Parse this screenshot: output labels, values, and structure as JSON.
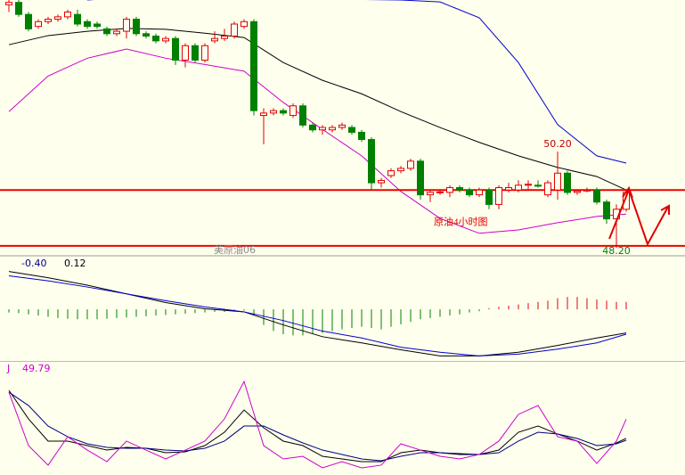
{
  "chart_data": [
    {
      "type": "candlestick",
      "title": "原油4小时图",
      "symbol": "美原油06",
      "up_color": "#e00000",
      "down_color": "#008000",
      "ylim": [
        48.07,
        53.35
      ],
      "open": [
        53.25,
        53.3,
        53.05,
        52.8,
        52.9,
        52.95,
        53,
        53.05,
        52.9,
        52.85,
        52.75,
        52.65,
        52.7,
        52.95,
        52.65,
        52.6,
        52.5,
        52.55,
        52.1,
        52.4,
        52.1,
        52.5,
        52.55,
        52.6,
        52.8,
        52.9,
        50.95,
        51,
        51.05,
        50.95,
        51.15,
        50.75,
        50.65,
        50.65,
        50.7,
        50.7,
        50.6,
        50.45,
        49.55,
        49.7,
        49.8,
        49.85,
        50,
        49.3,
        49.35,
        49.35,
        49.45,
        49.4,
        49.3,
        49.4,
        49.1,
        49.4,
        49.4,
        49.5,
        49.5,
        49.3,
        49.4,
        49.75,
        49.35,
        49.38,
        49.4,
        49.15,
        48.8,
        49
      ],
      "high": [
        53.35,
        53.35,
        53.1,
        52.95,
        53,
        53.05,
        53.15,
        53.15,
        52.95,
        52.9,
        52.8,
        52.75,
        53,
        53,
        52.7,
        52.65,
        52.6,
        52.6,
        52.45,
        52.45,
        52.45,
        52.7,
        52.75,
        52.9,
        52.95,
        52.95,
        51.1,
        51.1,
        51.1,
        51.2,
        51.2,
        50.8,
        50.75,
        50.75,
        50.8,
        50.75,
        50.65,
        50.5,
        49.65,
        49.85,
        49.9,
        50.05,
        50.05,
        49.4,
        49.4,
        49.5,
        49.5,
        49.45,
        49.45,
        49.45,
        49.5,
        49.55,
        49.6,
        49.6,
        49.6,
        49.6,
        50.2,
        49.8,
        49.4,
        49.45,
        49.45,
        49.2,
        49.1,
        49.4
      ],
      "low": [
        53.1,
        53,
        52.7,
        52.75,
        52.85,
        52.9,
        52.95,
        52.8,
        52.75,
        52.75,
        52.6,
        52.6,
        52.55,
        52.6,
        52.55,
        52.45,
        52.45,
        52,
        51.95,
        52.05,
        52.05,
        52.45,
        52.5,
        52.55,
        52.75,
        50.95,
        50.35,
        50.95,
        50.95,
        50.9,
        50.7,
        50.6,
        50.55,
        50.6,
        50.65,
        50.55,
        50.4,
        49.4,
        49.45,
        49.65,
        49.75,
        49.8,
        49.2,
        49.15,
        49.3,
        49.25,
        49.35,
        49.25,
        49.25,
        49,
        49,
        49.35,
        49.35,
        49.4,
        49.45,
        49.25,
        49.2,
        49.3,
        49.3,
        49.35,
        49.1,
        48.7,
        48.2,
        48.95
      ],
      "close": [
        53.3,
        53.05,
        52.75,
        52.9,
        52.95,
        53,
        53.1,
        52.85,
        52.8,
        52.8,
        52.65,
        52.7,
        52.95,
        52.65,
        52.6,
        52.5,
        52.55,
        52.1,
        52.4,
        52.1,
        52.4,
        52.55,
        52.6,
        52.85,
        52.9,
        51.05,
        51,
        51.05,
        51,
        51.15,
        50.75,
        50.65,
        50.7,
        50.7,
        50.75,
        50.6,
        50.45,
        49.55,
        49.6,
        49.8,
        49.85,
        50,
        49.3,
        49.35,
        49.36,
        49.45,
        49.4,
        49.3,
        49.4,
        49.1,
        49.45,
        49.45,
        49.5,
        49.52,
        49.48,
        49.55,
        49.75,
        49.35,
        49.38,
        49.4,
        49.15,
        48.8,
        49,
        49.35
      ],
      "overlays": [
        {
          "color": "#000000",
          "x": [
            0,
            4,
            8,
            12,
            16,
            20,
            24,
            28,
            32,
            36,
            40,
            44,
            48,
            52,
            56,
            60,
            63
          ],
          "values": [
            52.42,
            52.61,
            52.7,
            52.76,
            52.74,
            52.66,
            52.57,
            52.05,
            51.68,
            51.4,
            51.03,
            50.7,
            50.39,
            50.11,
            49.87,
            49.68,
            49.4
          ]
        },
        {
          "color": "#0000cc",
          "x": [
            8,
            12,
            16,
            20,
            24,
            28,
            32,
            36,
            40,
            44,
            48,
            52,
            56,
            60,
            63
          ],
          "values": [
            53.35,
            53.4,
            53.44,
            53.44,
            53.4,
            53.38,
            53.38,
            53.36,
            53.35,
            53.31,
            52.98,
            52.05,
            50.76,
            50.11,
            49.96
          ]
        },
        {
          "color": "#cc00cc",
          "x": [
            0,
            4,
            8,
            12,
            16,
            20,
            24,
            28,
            32,
            36,
            40,
            44,
            48,
            52,
            56,
            60,
            63
          ],
          "values": [
            51.03,
            51.77,
            52.14,
            52.33,
            52.14,
            52.01,
            51.87,
            51.22,
            50.66,
            50.11,
            49.37,
            48.81,
            48.5,
            48.57,
            48.72,
            48.85,
            48.9
          ]
        }
      ],
      "hlines": {
        "color": "#ee0000",
        "values": [
          49.4,
          48.24
        ]
      },
      "annotations": [
        {
          "text": "50.20",
          "value": 50.2,
          "x": 56,
          "position": "above",
          "color": "#c00000"
        },
        {
          "text": "48.20",
          "value": 48.2,
          "x": 62,
          "position": "below",
          "color": "#008000"
        }
      ]
    },
    {
      "type": "macd",
      "ylim": [
        -0.83,
        0.82
      ],
      "histogram": {
        "up_color": "#e00000",
        "down_color": "#008000",
        "values": [
          -0.05,
          -0.06,
          -0.08,
          -0.1,
          -0.12,
          -0.14,
          -0.15,
          -0.16,
          -0.16,
          -0.16,
          -0.15,
          -0.14,
          -0.13,
          -0.12,
          -0.11,
          -0.1,
          -0.09,
          -0.08,
          -0.07,
          -0.06,
          -0.05,
          -0.04,
          -0.04,
          -0.03,
          -0.02,
          -0.1,
          -0.25,
          -0.35,
          -0.4,
          -0.42,
          -0.42,
          -0.4,
          -0.38,
          -0.35,
          -0.32,
          -0.3,
          -0.28,
          -0.3,
          -0.32,
          -0.28,
          -0.24,
          -0.2,
          -0.16,
          -0.14,
          -0.12,
          -0.1,
          -0.08,
          -0.05,
          -0.03,
          0.02,
          0.04,
          0.06,
          0.08,
          0.1,
          0.12,
          0.14,
          0.18,
          0.2,
          0.2,
          0.18,
          0.16,
          0.14,
          0.12,
          0.12
        ]
      },
      "series": [
        {
          "color": "#000000",
          "x": [
            0,
            4,
            8,
            12,
            16,
            20,
            24,
            28,
            32,
            36,
            40,
            44,
            48,
            52,
            56,
            60,
            63
          ],
          "values": [
            0.61,
            0.51,
            0.39,
            0.25,
            0.11,
            0.01,
            -0.04,
            -0.25,
            -0.44,
            -0.54,
            -0.65,
            -0.75,
            -0.75,
            -0.69,
            -0.58,
            -0.46,
            -0.38
          ]
        },
        {
          "color": "#0000cc",
          "x": [
            0,
            4,
            8,
            12,
            16,
            20,
            24,
            28,
            32,
            36,
            40,
            44,
            48,
            52,
            56,
            60,
            63
          ],
          "values": [
            0.54,
            0.46,
            0.36,
            0.25,
            0.14,
            0.04,
            -0.04,
            -0.18,
            -0.35,
            -0.46,
            -0.61,
            -0.69,
            -0.75,
            -0.72,
            -0.64,
            -0.54,
            -0.4
          ],
          "value_label": "-0.40"
        }
      ]
    },
    {
      "type": "kdj",
      "ylim": [
        -2.5,
        101.7
      ],
      "x": [
        0,
        2,
        4,
        6,
        8,
        10,
        12,
        14,
        16,
        18,
        20,
        22,
        24,
        26,
        28,
        30,
        32,
        34,
        36,
        38,
        40,
        42,
        44,
        46,
        48,
        50,
        52,
        54,
        56,
        58,
        60,
        62,
        63
      ],
      "series": [
        {
          "color": "#000000",
          "values": [
            76.7,
            50,
            29.2,
            29.2,
            25,
            20.8,
            23.3,
            22.5,
            18.3,
            19.2,
            25,
            37.5,
            58.3,
            41.7,
            29.2,
            25,
            15,
            12.5,
            10,
            10,
            18.3,
            20.8,
            18.3,
            16.7,
            16.7,
            20.8,
            37.5,
            43.3,
            35.8,
            29.2,
            20.8,
            27.5,
            31.7
          ]
        },
        {
          "color": "#000080",
          "values": [
            75,
            62.5,
            43.3,
            33.3,
            26.7,
            23.3,
            22.5,
            22.5,
            20.8,
            20,
            22.5,
            29.2,
            43.3,
            43.3,
            35,
            27.5,
            20.8,
            16.7,
            12.5,
            10.8,
            15,
            18.3,
            18.3,
            17.5,
            16.7,
            18.3,
            29.2,
            37.5,
            35.8,
            31.7,
            25,
            26.7,
            30
          ]
        },
        {
          "name": "J",
          "color": "#cc00cc",
          "values": [
            75,
            25,
            6.7,
            33.3,
            20.8,
            10,
            29.2,
            20.8,
            12.5,
            20.8,
            29.2,
            50,
            85,
            25,
            12.5,
            15,
            4.2,
            10,
            4.2,
            6.7,
            26.7,
            20.8,
            15,
            12.5,
            16.7,
            29.2,
            54.2,
            62.5,
            33.3,
            29.2,
            8.3,
            29.2,
            49.79
          ]
        }
      ]
    }
  ]
}
